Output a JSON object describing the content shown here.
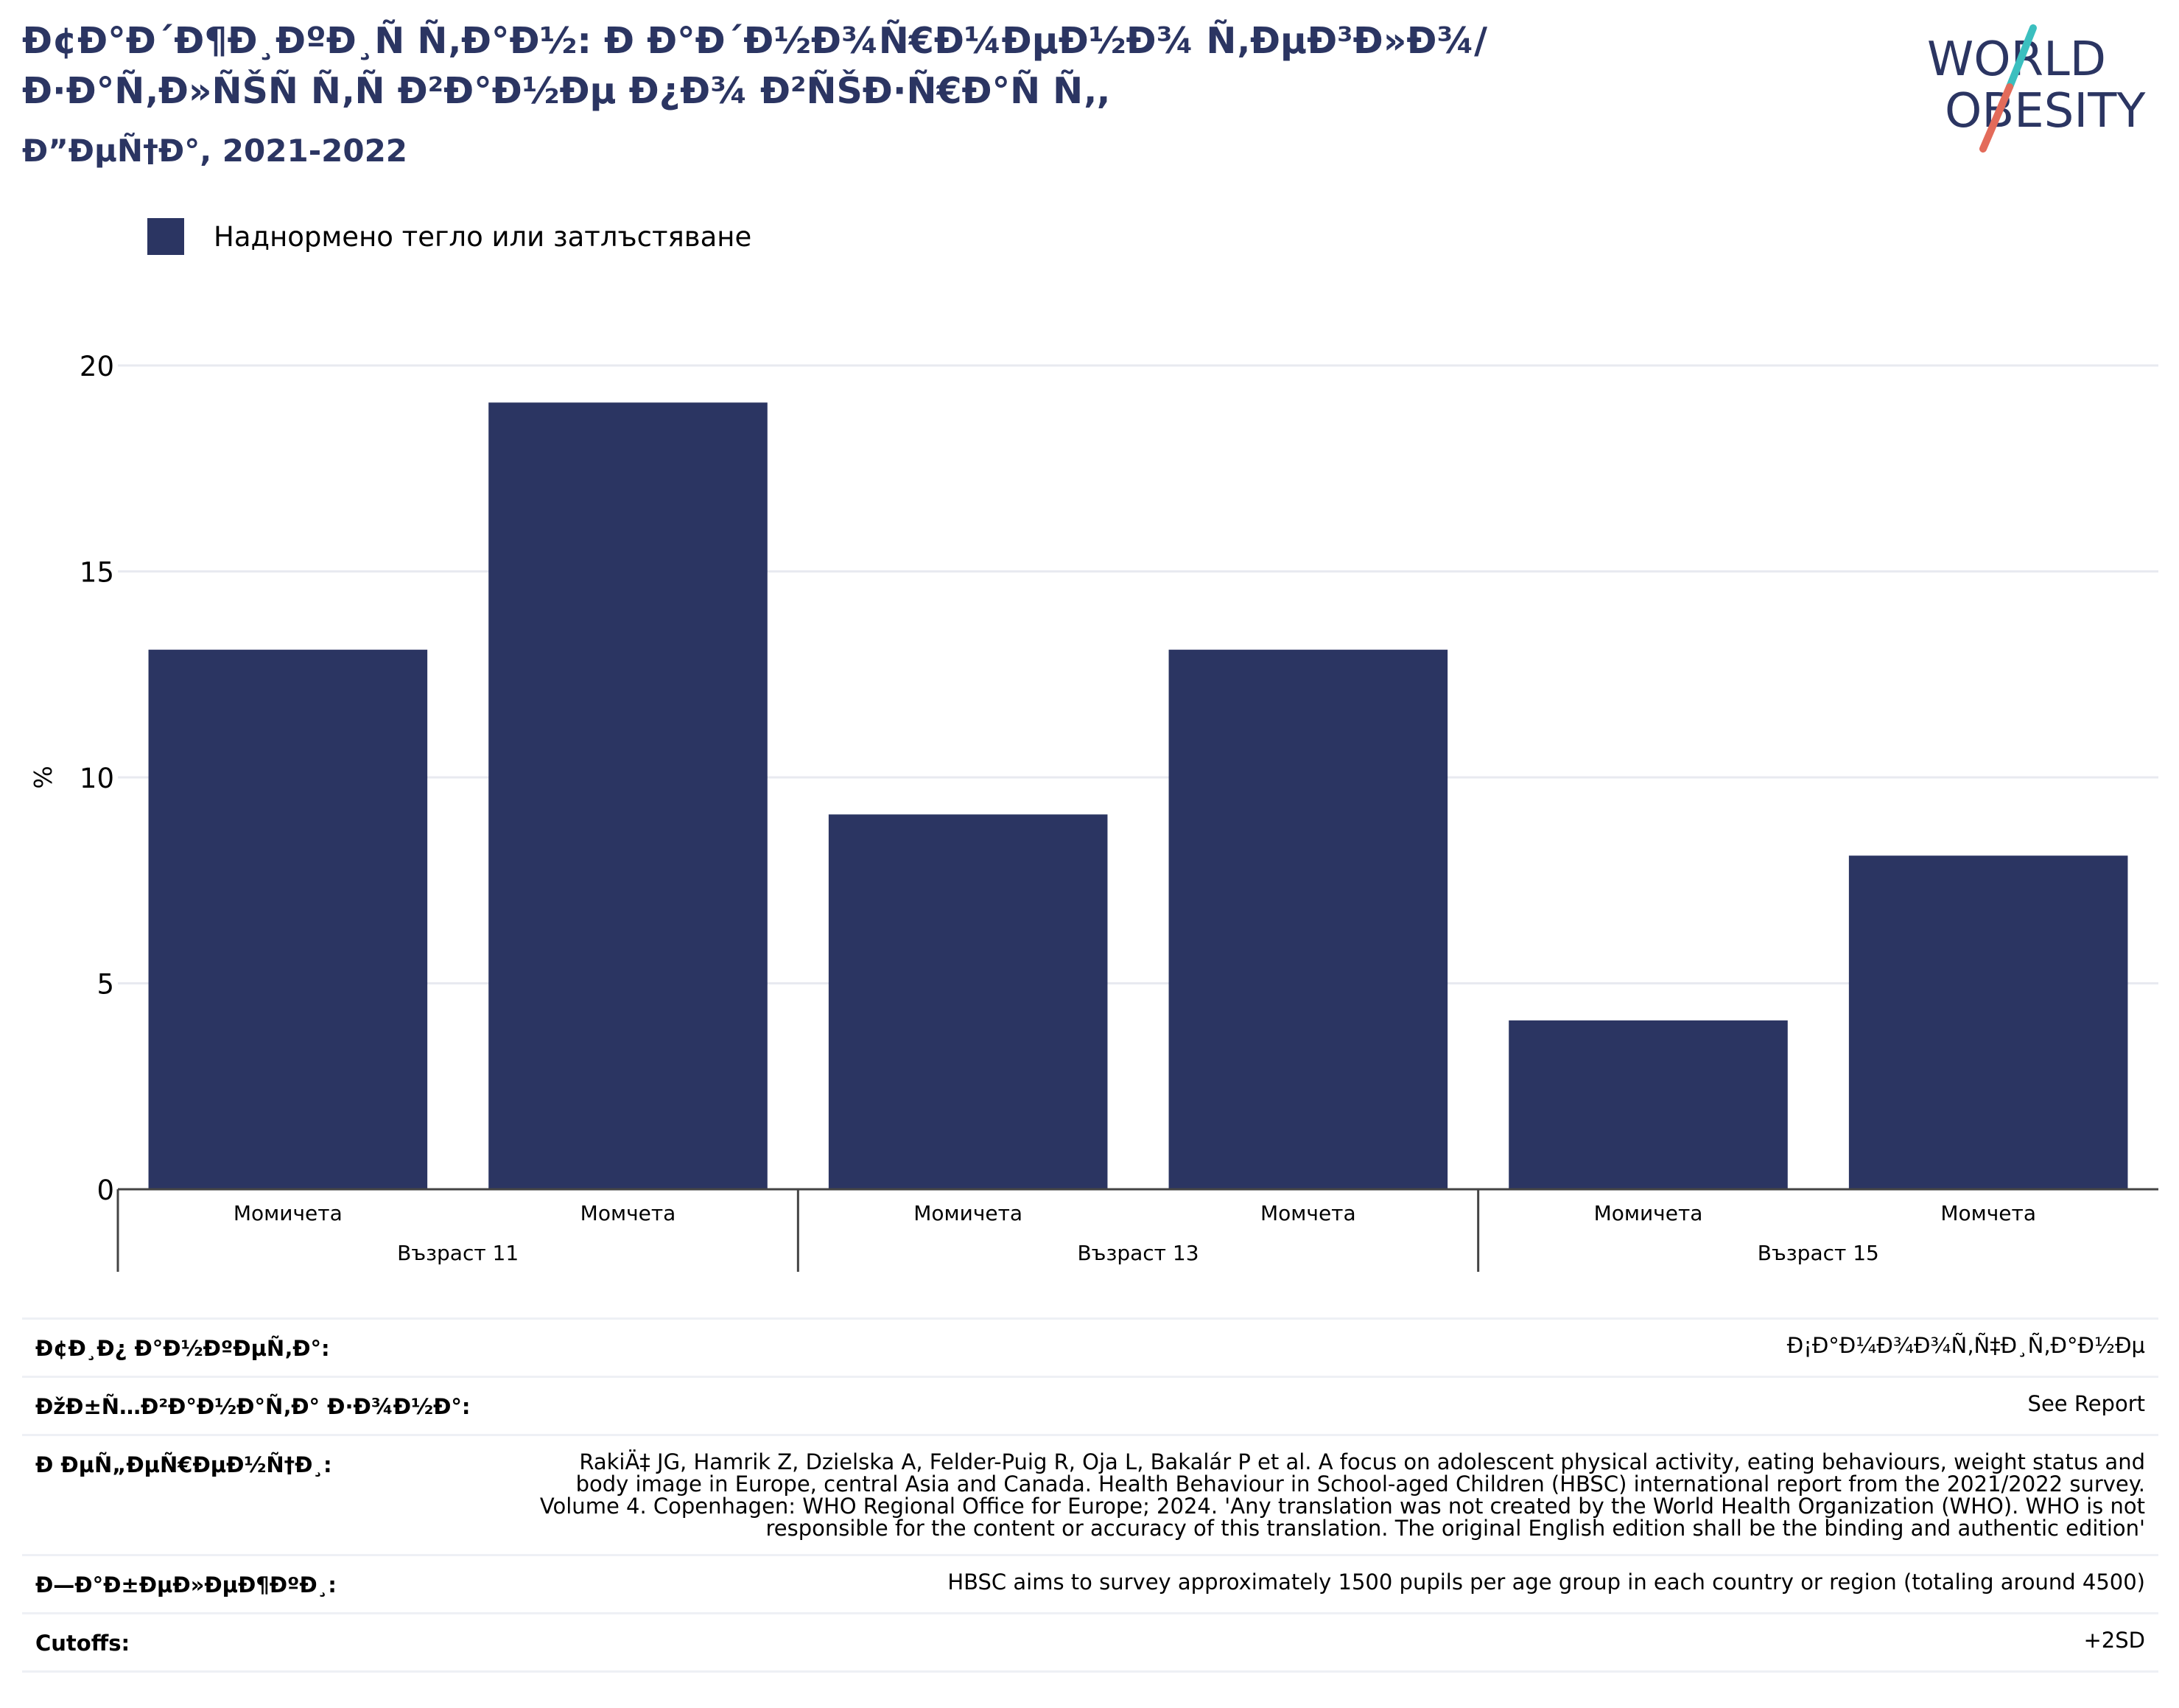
{
  "header": {
    "title": "Ð¢Ð°Ð´Ð¶Ð¸ÐºÐ¸Ñ Ñ‚Ð°Ð½: Ð Ð°Ð´Ð½Ð¾Ñ€Ð¼ÐµÐ½Ð¾ Ñ‚ÐµÐ³Ð»Ð¾/Ð·Ð°Ñ‚Ð»ÑŠÑ Ñ‚Ñ Ð²Ð°Ð½Ðµ Ð¿Ð¾ Ð²ÑŠÐ·Ñ€Ð°Ñ Ñ‚,",
    "subtitle": "Ð”ÐµÑ†Ð°, 2021-2022"
  },
  "logo": {
    "line1": "WORLD",
    "line2": "OBESITY",
    "text_color": "#2b3562",
    "slash_top": "#3bbfbf",
    "slash_bottom": "#e36b5a"
  },
  "legend": {
    "label": "Наднормено тегло или затлъстяване",
    "color": "#2b3562"
  },
  "chart_data": {
    "type": "bar",
    "ylabel": "%",
    "ylim": [
      0,
      20
    ],
    "yticks": [
      0,
      5,
      10,
      15,
      20
    ],
    "grid": true,
    "categories": [
      "Момичета",
      "Момчета",
      "Момичета",
      "Момчета",
      "Момичета",
      "Момчета"
    ],
    "groups": [
      {
        "label": "Възраст 11",
        "count": 2
      },
      {
        "label": "Възраст 13",
        "count": 2
      },
      {
        "label": "Възраст 15",
        "count": 2
      }
    ],
    "series": [
      {
        "name": "Наднормено тегло или затлъстяване",
        "values": [
          13.1,
          19.1,
          9.1,
          13.1,
          4.1,
          8.1
        ],
        "color": "#2b3562"
      }
    ]
  },
  "info": [
    {
      "label": "Ð¢Ð¸Ð¿ Ð°Ð½ÐºÐµÑ‚Ð°:",
      "value": "Ð¡Ð°Ð¼Ð¾Ð¾Ñ‚Ñ‡Ð¸Ñ‚Ð°Ð½Ðµ"
    },
    {
      "label": "ÐžÐ±Ñ…Ð²Ð°Ð½Ð°Ñ‚Ð° Ð·Ð¾Ð½Ð°:",
      "value": "See Report"
    },
    {
      "label": "Ð ÐµÑ„ÐµÑ€ÐµÐ½Ñ†Ð¸:",
      "value": "RakiÄ‡ JG, Hamrik Z, Dzielska A, Felder-Puig R, Oja L, Bakalár P et al. A focus on adolescent physical activity, eating behaviours, weight status and body image in Europe, central Asia and Canada. Health Behaviour in School-aged Children (HBSC) international report from the 2021/2022 survey. Volume 4. Copenhagen: WHO Regional Office for Europe; 2024. 'Any translation was not created by the World Health Organization (WHO). WHO is not responsible for the content or accuracy of this translation. The original English edition shall be the binding and authentic edition'"
    },
    {
      "label": "Ð—Ð°Ð±ÐµÐ»ÐµÐ¶ÐºÐ¸:",
      "value": "HBSC aims to survey approximately 1500 pupils per age group in each country or region (totaling around 4500)"
    },
    {
      "label": "Cutoffs:",
      "value": "+2SD"
    }
  ]
}
